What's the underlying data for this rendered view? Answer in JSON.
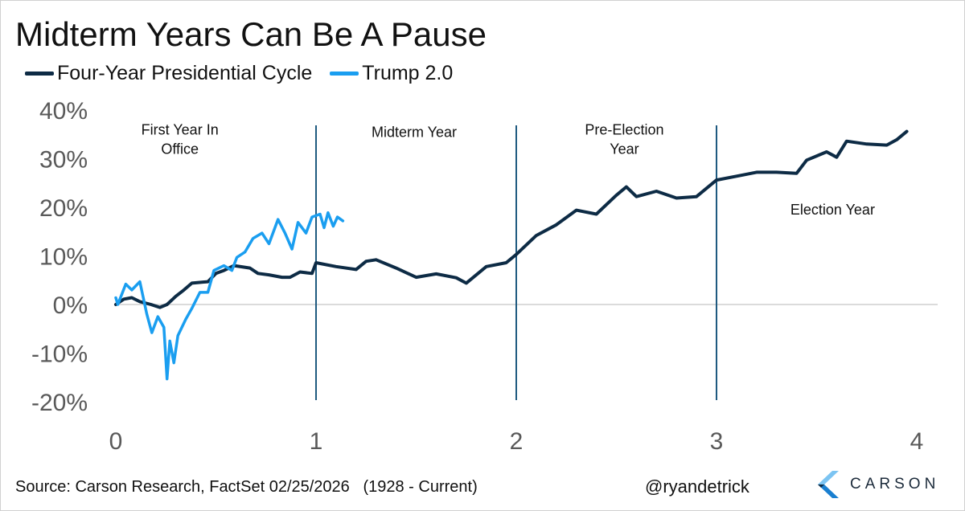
{
  "chart_data": {
    "type": "line",
    "title": "Midterm Years Can Be A Pause",
    "xlim": [
      0,
      4
    ],
    "ylim": [
      -20,
      40
    ],
    "x_ticks": [
      "0",
      "1",
      "2",
      "3",
      "4"
    ],
    "y_ticks": [
      "40%",
      "30%",
      "20%",
      "10%",
      "0%",
      "-10%",
      "-20%"
    ],
    "y_tick_values": [
      40,
      30,
      20,
      10,
      0,
      -10,
      -20
    ],
    "x_tick_values": [
      0,
      1,
      2,
      3,
      4
    ],
    "legend_placement": "top-left",
    "grid": false,
    "year_dividers": [
      1,
      2,
      3
    ],
    "annotations": [
      {
        "lines": [
          "First Year In",
          "Office"
        ],
        "x": 0.32,
        "y": 35
      },
      {
        "lines": [
          "Midterm Year"
        ],
        "x": 1.49,
        "y": 34.5
      },
      {
        "lines": [
          "Pre-Election",
          "Year"
        ],
        "x": 2.54,
        "y": 35
      },
      {
        "lines": [
          "Election Year"
        ],
        "x": 3.58,
        "y": 18.5
      }
    ],
    "series": [
      {
        "name": "Four-Year Presidential Cycle",
        "color": "#0d2b45",
        "points": [
          [
            0,
            0
          ],
          [
            0.04,
            1.1
          ],
          [
            0.08,
            1.4
          ],
          [
            0.12,
            0.6
          ],
          [
            0.176,
            0
          ],
          [
            0.22,
            -0.6
          ],
          [
            0.256,
            0
          ],
          [
            0.3,
            1.7
          ],
          [
            0.34,
            3
          ],
          [
            0.38,
            4.4
          ],
          [
            0.46,
            4.7
          ],
          [
            0.5,
            6.4
          ],
          [
            0.54,
            7
          ],
          [
            0.59,
            8
          ],
          [
            0.67,
            7.5
          ],
          [
            0.71,
            6.4
          ],
          [
            0.765,
            6.1
          ],
          [
            0.83,
            5.6
          ],
          [
            0.87,
            5.6
          ],
          [
            0.92,
            6.7
          ],
          [
            0.98,
            6.4
          ],
          [
            1.0,
            8.6
          ],
          [
            1.1,
            7.8
          ],
          [
            1.2,
            7.2
          ],
          [
            1.25,
            8.9
          ],
          [
            1.3,
            9.2
          ],
          [
            1.4,
            7.5
          ],
          [
            1.5,
            5.6
          ],
          [
            1.6,
            6.3
          ],
          [
            1.7,
            5.5
          ],
          [
            1.75,
            4.4
          ],
          [
            1.85,
            7.8
          ],
          [
            1.95,
            8.6
          ],
          [
            2.0,
            10.3
          ],
          [
            2.1,
            14.2
          ],
          [
            2.2,
            16.4
          ],
          [
            2.3,
            19.4
          ],
          [
            2.4,
            18.6
          ],
          [
            2.5,
            22.5
          ],
          [
            2.55,
            24.2
          ],
          [
            2.6,
            22.2
          ],
          [
            2.7,
            23.3
          ],
          [
            2.8,
            21.9
          ],
          [
            2.9,
            22.2
          ],
          [
            3.0,
            25.6
          ],
          [
            3.1,
            26.4
          ],
          [
            3.2,
            27.2
          ],
          [
            3.3,
            27.2
          ],
          [
            3.4,
            27
          ],
          [
            3.45,
            29.7
          ],
          [
            3.55,
            31.4
          ],
          [
            3.6,
            30.3
          ],
          [
            3.65,
            33.6
          ],
          [
            3.75,
            33
          ],
          [
            3.85,
            32.8
          ],
          [
            3.9,
            33.9
          ],
          [
            3.95,
            35.6
          ]
        ]
      },
      {
        "name": "Trump 2.0",
        "color": "#1a9ef0",
        "points": [
          [
            0,
            1.4
          ],
          [
            0.01,
            0
          ],
          [
            0.05,
            4.2
          ],
          [
            0.08,
            3
          ],
          [
            0.12,
            4.7
          ],
          [
            0.155,
            -2
          ],
          [
            0.18,
            -5.8
          ],
          [
            0.21,
            -2.5
          ],
          [
            0.24,
            -4.7
          ],
          [
            0.256,
            -15.3
          ],
          [
            0.27,
            -7.5
          ],
          [
            0.29,
            -12
          ],
          [
            0.31,
            -6.4
          ],
          [
            0.35,
            -3
          ],
          [
            0.38,
            -0.8
          ],
          [
            0.42,
            2.5
          ],
          [
            0.46,
            2.5
          ],
          [
            0.49,
            7
          ],
          [
            0.54,
            8
          ],
          [
            0.58,
            7
          ],
          [
            0.605,
            9.7
          ],
          [
            0.645,
            10.8
          ],
          [
            0.685,
            13.6
          ],
          [
            0.73,
            14.7
          ],
          [
            0.765,
            12.5
          ],
          [
            0.81,
            17.5
          ],
          [
            0.845,
            14.7
          ],
          [
            0.88,
            11.4
          ],
          [
            0.91,
            16.9
          ],
          [
            0.95,
            14.7
          ],
          [
            0.98,
            18
          ],
          [
            1.02,
            18.6
          ],
          [
            1.04,
            15.8
          ],
          [
            1.06,
            18.9
          ],
          [
            1.086,
            16.1
          ],
          [
            1.107,
            18
          ],
          [
            1.134,
            17.2
          ]
        ]
      }
    ]
  },
  "legend": [
    {
      "label": "Four-Year Presidential Cycle",
      "color": "#0d2b45"
    },
    {
      "label": "Trump 2.0",
      "color": "#1a9ef0"
    }
  ],
  "footer": {
    "source": "Source: Carson Research, FactSet 02/25/2026   (1928 - Current)",
    "handle": "@ryandetrick",
    "logo_text": "CARSON"
  }
}
